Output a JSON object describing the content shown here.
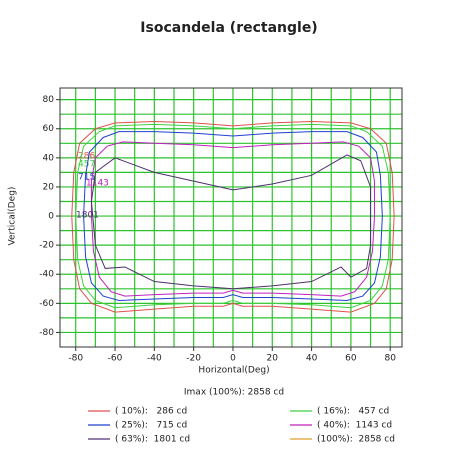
{
  "chart_data": {
    "type": "line",
    "title": "Isocandela (rectangle)",
    "x_label": "Horizontal(Deg)",
    "y_label": "Vertical(Deg)",
    "note": "Imax (100%): 2858 cd",
    "xlim": [
      -88,
      86
    ],
    "ylim": [
      -90,
      88
    ],
    "xticks": [
      -80,
      -60,
      -40,
      -20,
      0,
      20,
      40,
      60,
      80
    ],
    "yticks": [
      -80,
      -60,
      -40,
      -20,
      0,
      20,
      40,
      60,
      80
    ],
    "xgrid": [
      -80,
      -70,
      -60,
      -50,
      -40,
      -30,
      -20,
      -10,
      0,
      10,
      20,
      30,
      40,
      50,
      60,
      70,
      80
    ],
    "ygrid": [
      -80,
      -70,
      -60,
      -50,
      -40,
      -30,
      -20,
      -10,
      0,
      10,
      20,
      30,
      40,
      50,
      60,
      70,
      80
    ],
    "grid": true,
    "grid_color": "#2dc22d",
    "series": [
      {
        "name": "( 10%):   286 cd",
        "label": "286",
        "color": "#e05050",
        "x": [
          0,
          20,
          40,
          60,
          70,
          78,
          81,
          82,
          81,
          78,
          72,
          60,
          40,
          20,
          5,
          0,
          -5,
          -20,
          -40,
          -60,
          -72,
          -78,
          -81,
          -82,
          -81,
          -78,
          -70,
          -60,
          -40,
          -20,
          0
        ],
        "values": [
          62,
          64,
          65,
          64,
          60,
          50,
          30,
          0,
          -30,
          -50,
          -60,
          -66,
          -64,
          -62,
          -62,
          -60,
          -62,
          -62,
          -64,
          -66,
          -60,
          -50,
          -30,
          0,
          30,
          50,
          60,
          64,
          65,
          64,
          62
        ]
      },
      {
        "name": "( 16%):   457 cd",
        "label": "457",
        "color": "#40d040",
        "x": [
          0,
          20,
          40,
          60,
          68,
          76,
          79,
          80,
          79,
          76,
          70,
          60,
          40,
          20,
          5,
          0,
          -5,
          -20,
          -40,
          -60,
          -70,
          -76,
          -79,
          -80,
          -79,
          -76,
          -68,
          -60,
          -40,
          -20,
          0
        ],
        "values": [
          60,
          62,
          63,
          62,
          58,
          48,
          30,
          0,
          -30,
          -48,
          -58,
          -63,
          -61,
          -60,
          -60,
          -58,
          -60,
          -60,
          -61,
          -63,
          -58,
          -48,
          -30,
          0,
          30,
          48,
          58,
          62,
          63,
          62,
          60
        ]
      },
      {
        "name": "( 25%):   715 cd",
        "label": "715",
        "color": "#2040d0",
        "x": [
          0,
          20,
          40,
          58,
          66,
          73,
          75,
          76,
          75,
          72,
          66,
          58,
          40,
          20,
          5,
          0,
          -5,
          -20,
          -40,
          -58,
          -66,
          -72,
          -75,
          -76,
          -75,
          -73,
          -66,
          -58,
          -40,
          -20,
          0
        ],
        "values": [
          55,
          57,
          58,
          58,
          54,
          44,
          28,
          0,
          -28,
          -46,
          -55,
          -58,
          -57,
          -56,
          -56,
          -54,
          -56,
          -56,
          -57,
          -58,
          -55,
          -46,
          -28,
          0,
          28,
          44,
          54,
          58,
          58,
          57,
          55
        ]
      },
      {
        "name": "( 40%):  1143 cd",
        "label": "1143",
        "color": "#c020c0",
        "x": [
          0,
          20,
          40,
          56,
          64,
          70,
          72,
          72,
          71,
          68,
          62,
          55,
          40,
          20,
          5,
          0,
          -5,
          -20,
          -40,
          -55,
          -62,
          -68,
          -71,
          -72,
          -72,
          -70,
          -64,
          -56,
          -40,
          -20,
          0
        ],
        "values": [
          47,
          49,
          50,
          51,
          48,
          40,
          24,
          0,
          -24,
          -42,
          -52,
          -55,
          -54,
          -53,
          -53,
          -51,
          -53,
          -53,
          -54,
          -55,
          -52,
          -42,
          -24,
          0,
          24,
          40,
          48,
          51,
          50,
          49,
          47
        ]
      },
      {
        "name": "( 63%):  1801 cd",
        "label": "1801",
        "color": "#503070",
        "x": [
          0,
          20,
          40,
          58,
          65,
          70,
          70,
          68,
          60,
          55,
          40,
          20,
          0,
          -20,
          -40,
          -55,
          -65,
          -70,
          -72,
          -70,
          -60,
          -40,
          -20,
          0
        ],
        "values": [
          18,
          22,
          28,
          42,
          38,
          20,
          -20,
          -36,
          -42,
          -35,
          -45,
          -48,
          -50,
          -48,
          -45,
          -35,
          -36,
          -20,
          10,
          30,
          40,
          30,
          24,
          18
        ]
      },
      {
        "name": "(100%):  2858 cd",
        "color": "#e0a030",
        "x": [],
        "values": []
      }
    ]
  }
}
